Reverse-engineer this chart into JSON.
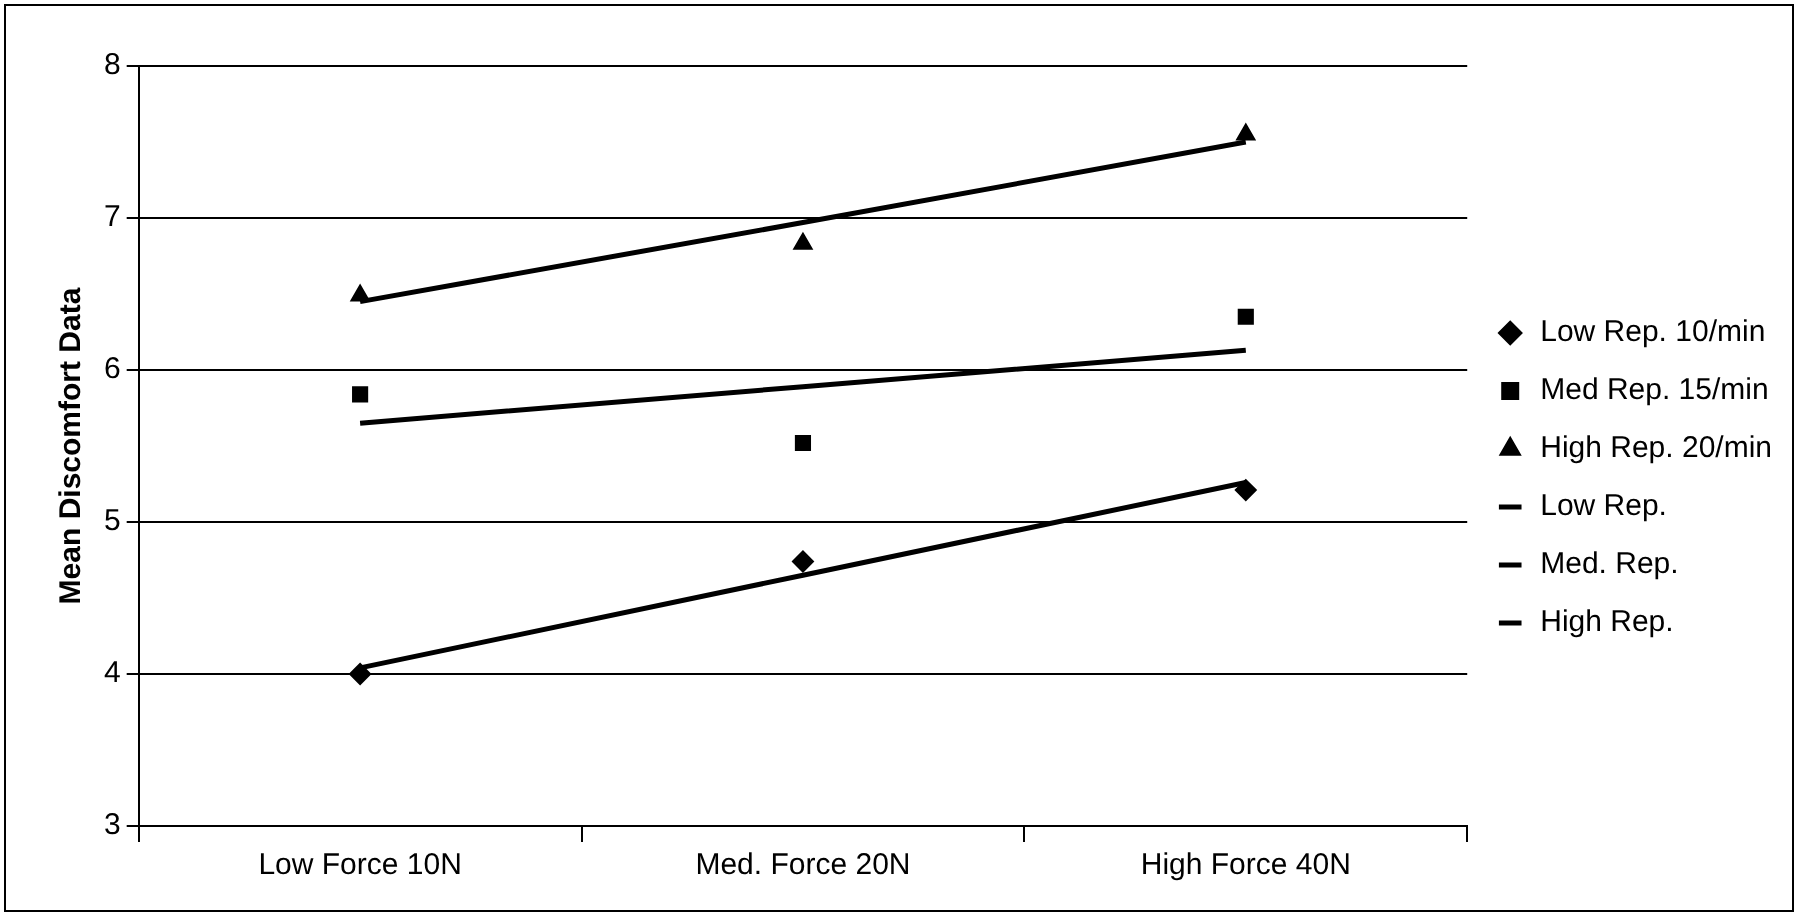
{
  "chart_data": {
    "type": "line",
    "ylabel": "Mean Discomfort Data",
    "categories": [
      "Low Force 10N",
      "Med. Force 20N",
      "High Force 40N"
    ],
    "ylim": [
      3,
      8
    ],
    "yticks": [
      3,
      4,
      5,
      6,
      7,
      8
    ],
    "grid": "y",
    "legend": "right",
    "series": [
      {
        "name": "Low Rep. 10/min",
        "type": "scatter",
        "marker": "diamond",
        "color": "#000000",
        "values": [
          4.0,
          4.74,
          5.21
        ]
      },
      {
        "name": "Med Rep. 15/min",
        "type": "scatter",
        "marker": "square",
        "color": "#000000",
        "values": [
          5.84,
          5.52,
          6.35
        ]
      },
      {
        "name": "High Rep. 20/min",
        "type": "scatter",
        "marker": "triangle",
        "color": "#000000",
        "values": [
          6.49,
          6.83,
          7.55
        ]
      },
      {
        "name": "Low Rep.",
        "type": "line",
        "marker": "none",
        "color": "#000000",
        "values": [
          4.04,
          4.65,
          5.26
        ]
      },
      {
        "name": "Med. Rep.",
        "type": "line",
        "marker": "none",
        "color": "#000000",
        "values": [
          5.65,
          5.89,
          6.13
        ]
      },
      {
        "name": "High Rep.",
        "type": "line",
        "marker": "none",
        "color": "#000000",
        "values": [
          6.45,
          6.97,
          7.5
        ]
      }
    ]
  }
}
